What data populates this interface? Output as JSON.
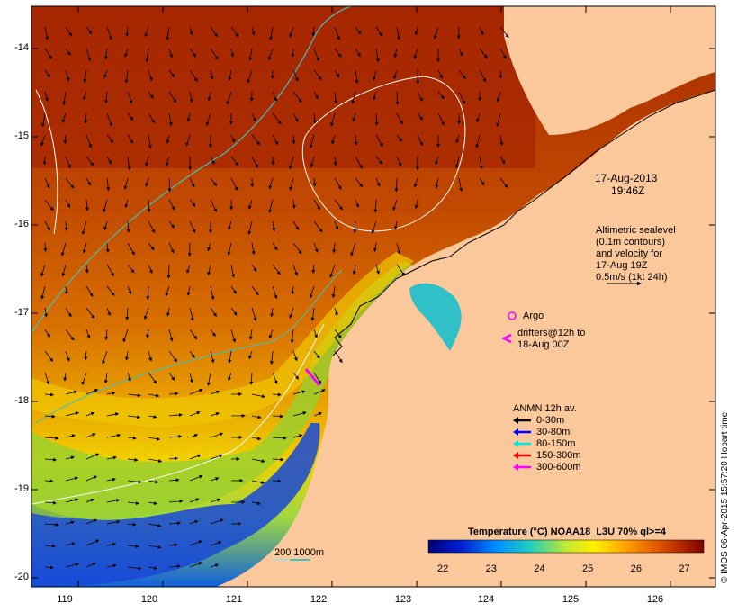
{
  "timestamp": {
    "date": "17-Aug-2013",
    "time": "19:46Z"
  },
  "altimetry_note": [
    "Altimetric sealevel",
    "(0.1m contours)",
    "and velocity for",
    "17-Aug 19Z",
    "0.5m/s (1kt 24h)"
  ],
  "argo_label": "Argo",
  "drifter_label": [
    "drifters@12h to",
    "18-Aug 00Z"
  ],
  "anmn": {
    "title": "ANMN 12h av.",
    "items": [
      {
        "label": "0-30m",
        "color": "#000000"
      },
      {
        "label": "30-80m",
        "color": "#0000ff"
      },
      {
        "label": "80-150m",
        "color": "#00e5e5"
      },
      {
        "label": "150-300m",
        "color": "#ff0000"
      },
      {
        "label": "300-600m",
        "color": "#ff00ff"
      }
    ]
  },
  "colorbar": {
    "title": "Temperature (°C) NOAA18_L3U 70% ql>=4",
    "ticks": [
      "22",
      "23",
      "24",
      "25",
      "26",
      "27"
    ],
    "range": [
      21.7,
      27.4
    ]
  },
  "isobath_label": "200  1000m",
  "isobath_colors": {
    "200m": "#a0e0e0",
    "1000m": "#40c0c0"
  },
  "credit": "© IMOS 06-Apr-2015 15:57:20 Hobart time",
  "axes": {
    "y_ticks": [
      "-14",
      "-15",
      "-16",
      "-17",
      "-18",
      "-19",
      "-20"
    ],
    "x_ticks": [
      "119",
      "120",
      "121",
      "122",
      "123",
      "124",
      "125",
      "126"
    ]
  },
  "colors": {
    "land": "#fbc89c",
    "sea_warm": "#b83a00",
    "sea_cool": "#0a40c0"
  }
}
